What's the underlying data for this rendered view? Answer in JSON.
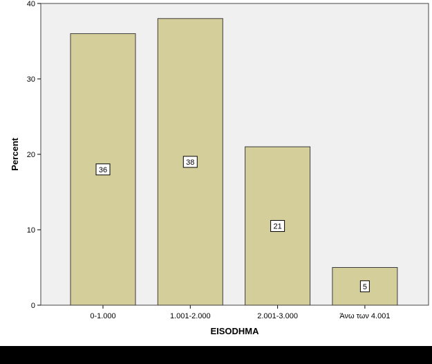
{
  "chart_data": {
    "type": "bar",
    "xlabel": "EISODHMA",
    "ylabel": "Percent",
    "categories": [
      "0-1.000",
      "1.001-2.000",
      "2.001-3.000",
      "Άνω των 4.001"
    ],
    "values": [
      36,
      38,
      21,
      5
    ],
    "data_labels": [
      "36",
      "38",
      "21",
      "5"
    ],
    "ylim": [
      0,
      40
    ],
    "yticks": [
      0,
      10,
      20,
      30,
      40
    ],
    "grid": false,
    "legend": "none",
    "colors": {
      "bar_fill": "#d4cf9a",
      "bar_stroke": "#3a3a3a",
      "plot_background": "#f0f0f0",
      "page_background": "#ffffff"
    }
  }
}
